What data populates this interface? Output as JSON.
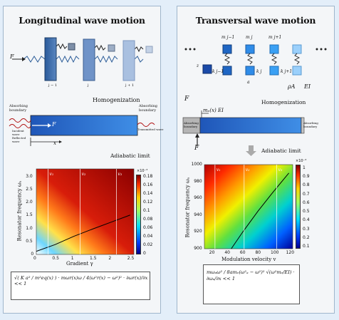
{
  "left": {
    "title": "Longitudinal wave motion",
    "force_label": "F",
    "chain_indices": [
      "j − 1",
      "j",
      "j + 1"
    ],
    "homogenization_label": "Homogenization",
    "absorbing_left": "Absorbing boundary",
    "absorbing_right": "Absorbing boundary",
    "incident_label": "Incident wave\nReflected wave",
    "transmitted_label": "Transmitted wave",
    "bar_force": "F",
    "x_label": "x",
    "adiabatic_label": "Adiabatic limit",
    "colorbar_exponent": "×10⁻³",
    "colorbar_ticks": [
      "0.18",
      "0.16",
      "0.14",
      "0.12",
      "0.1",
      "0.08",
      "0.06",
      "0.04",
      "0.02",
      "0"
    ],
    "formula_text": "√( K a² / m²eq(x) ) · mωr(x)ω / 4(ω²r(x) − ω²)² · ∂ωr(x)/∂x << 1"
  },
  "right": {
    "title": "Transversal wave motion",
    "mass_labels": [
      "m j−1",
      "m j",
      "m j+1"
    ],
    "spring_labels": [
      "k j−1",
      "k j",
      "k j+1"
    ],
    "z_label": "z",
    "a_label": "a",
    "rhoA_label": "ρA",
    "EI_label": "EI",
    "force_label": "F",
    "homogenization_label": "Homogenization",
    "field_label": "mₑ(x) EI",
    "absorbing_left": "Absorbing boundary",
    "absorbing_right": "Absorbing boundary",
    "bar_force": "F",
    "adiabatic_label": "Adiabatic limit",
    "colorbar_exponent": "×10⁻³",
    "colorbar_ticks": [
      "1",
      "0.9",
      "0.8",
      "0.7",
      "0.6",
      "0.5",
      "0.4",
      "0.3",
      "0.2",
      "0.1"
    ],
    "formula_text": "mωₐω² / 8amₑ(ω²ₐ − ω²)² √(ω²mₑ/EI) · ∂ωₐ/∂x << 1"
  },
  "chart_data": [
    {
      "type": "heatmap",
      "title": "",
      "xlabel": "Gradient γ",
      "ylabel": "Resonator frequency ωₐ",
      "x_ticks": [
        "0",
        "0.5",
        "1",
        "1.5",
        "2",
        "2.5"
      ],
      "y_ticks": [
        "0",
        "0.5",
        "1.0",
        "1.5",
        "2.0",
        "2.5",
        "3.0"
      ],
      "xlim": [
        0,
        2.6
      ],
      "ylim": [
        0,
        3.3
      ],
      "markers": [
        "v₁",
        "v₂",
        "v₃"
      ],
      "colorbar": {
        "range": [
          0,
          0.00018
        ],
        "colormap": "jet"
      },
      "curve": {
        "x": [
          0,
          0.5,
          1,
          1.5,
          2,
          2.5
        ],
        "y": [
          0.12,
          0.38,
          0.7,
          0.98,
          1.25,
          1.52
        ]
      }
    },
    {
      "type": "heatmap",
      "title": "",
      "xlabel": "Modulation velocity v",
      "ylabel": "Resonator frequency ωₐ",
      "x_ticks": [
        "20",
        "40",
        "60",
        "80",
        "100",
        "120"
      ],
      "y_ticks": [
        "900",
        "920",
        "940",
        "960",
        "980",
        "1000"
      ],
      "xlim": [
        10,
        125
      ],
      "ylim": [
        900,
        1000
      ],
      "markers": [
        "v₁",
        "v₂",
        "v₃"
      ],
      "colorbar": {
        "range": [
          0,
          0.001
        ],
        "colormap": "jet"
      },
      "curve": {
        "x": [
          45,
          60,
          80,
          100,
          120
        ],
        "y": [
          900,
          920,
          945,
          968,
          990
        ]
      }
    }
  ]
}
